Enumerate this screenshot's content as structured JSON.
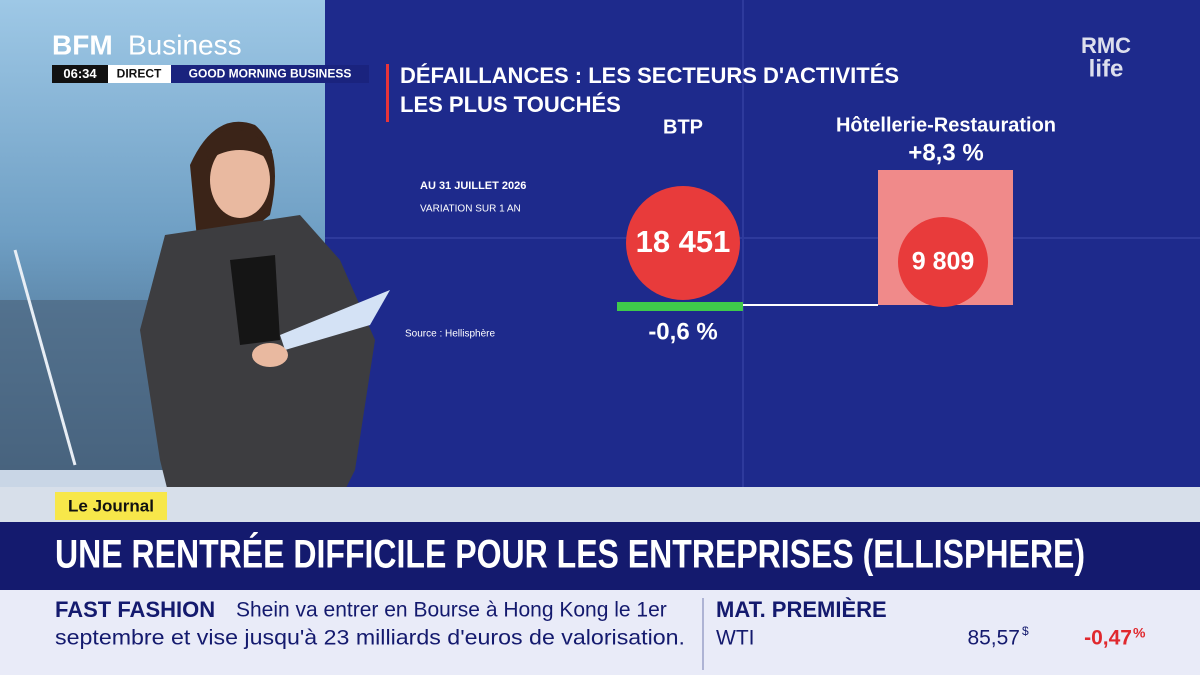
{
  "channel": {
    "brand": "BFM",
    "brand_suffix": "Business",
    "time": "06:34",
    "live": "DIRECT",
    "show": "GOOD MORNING BUSINESS",
    "partner_top": "RMC",
    "partner_bottom": "life"
  },
  "graphic": {
    "title_line1": "DÉFAILLANCES : LES SECTEURS D'ACTIVITÉS",
    "title_line2": "LES PLUS TOUCHÉS",
    "date": "AU 31 JUILLET 2026",
    "subtitle": "VARIATION SUR 1 AN",
    "source": "Source : Hellisphère",
    "sectors": [
      {
        "name": "BTP",
        "count": "18 451",
        "change": "-0,6 %"
      },
      {
        "name": "Hôtellerie-Restauration",
        "count": "9 809",
        "change": "+8,3 %"
      }
    ]
  },
  "lower_third": {
    "tag": "Le Journal",
    "headline": "UNE RENTRÉE DIFFICILE POUR LES ENTREPRISES (ELLISPHERE)"
  },
  "ticker": {
    "topic": "FAST FASHION",
    "line1": "Shein va entrer en Bourse à Hong Kong le 1er",
    "line2": "septembre et vise jusqu'à 23 milliards d'euros de valorisation.",
    "market_title": "MAT. PREMIÈRE",
    "asset": "WTI",
    "price": "85,57",
    "currency": "$",
    "change": "-0,47",
    "unit": "%"
  }
}
